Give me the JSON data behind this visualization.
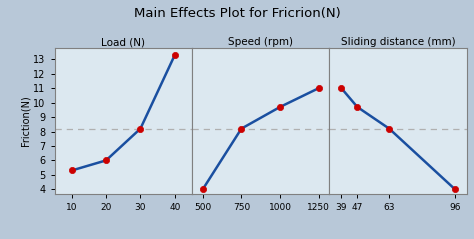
{
  "title": "Main Effects Plot for Fricrion(N)",
  "ylabel": "Friction(N)",
  "outer_bg": "#b8c8d8",
  "inner_bg": "#dce8f0",
  "line_color": "#1a4fa0",
  "marker_color": "#cc0000",
  "hline_y": 8.2,
  "hline_color": "#b0b0b0",
  "ylim": [
    3.7,
    13.8
  ],
  "yticks": [
    4,
    5,
    6,
    7,
    8,
    9,
    10,
    11,
    12,
    13
  ],
  "subplots": [
    {
      "title": "Load (N)",
      "x": [
        10,
        20,
        30,
        40
      ],
      "y": [
        5.3,
        6.0,
        8.2,
        13.3
      ],
      "xticks": [
        10,
        20,
        30,
        40
      ],
      "xlim": [
        5,
        45
      ]
    },
    {
      "title": "Speed (rpm)",
      "x": [
        500,
        750,
        1000,
        1250
      ],
      "y": [
        4.0,
        8.2,
        9.7,
        11.0
      ],
      "xticks": [
        500,
        750,
        1000,
        1250
      ],
      "xlim": [
        430,
        1320
      ]
    },
    {
      "title": "Sliding distance (mm)",
      "x": [
        39,
        47,
        63,
        96
      ],
      "y": [
        11.0,
        9.7,
        8.2,
        4.0
      ],
      "xticks": [
        39,
        47,
        63,
        96
      ],
      "xlim": [
        33,
        102
      ]
    }
  ]
}
